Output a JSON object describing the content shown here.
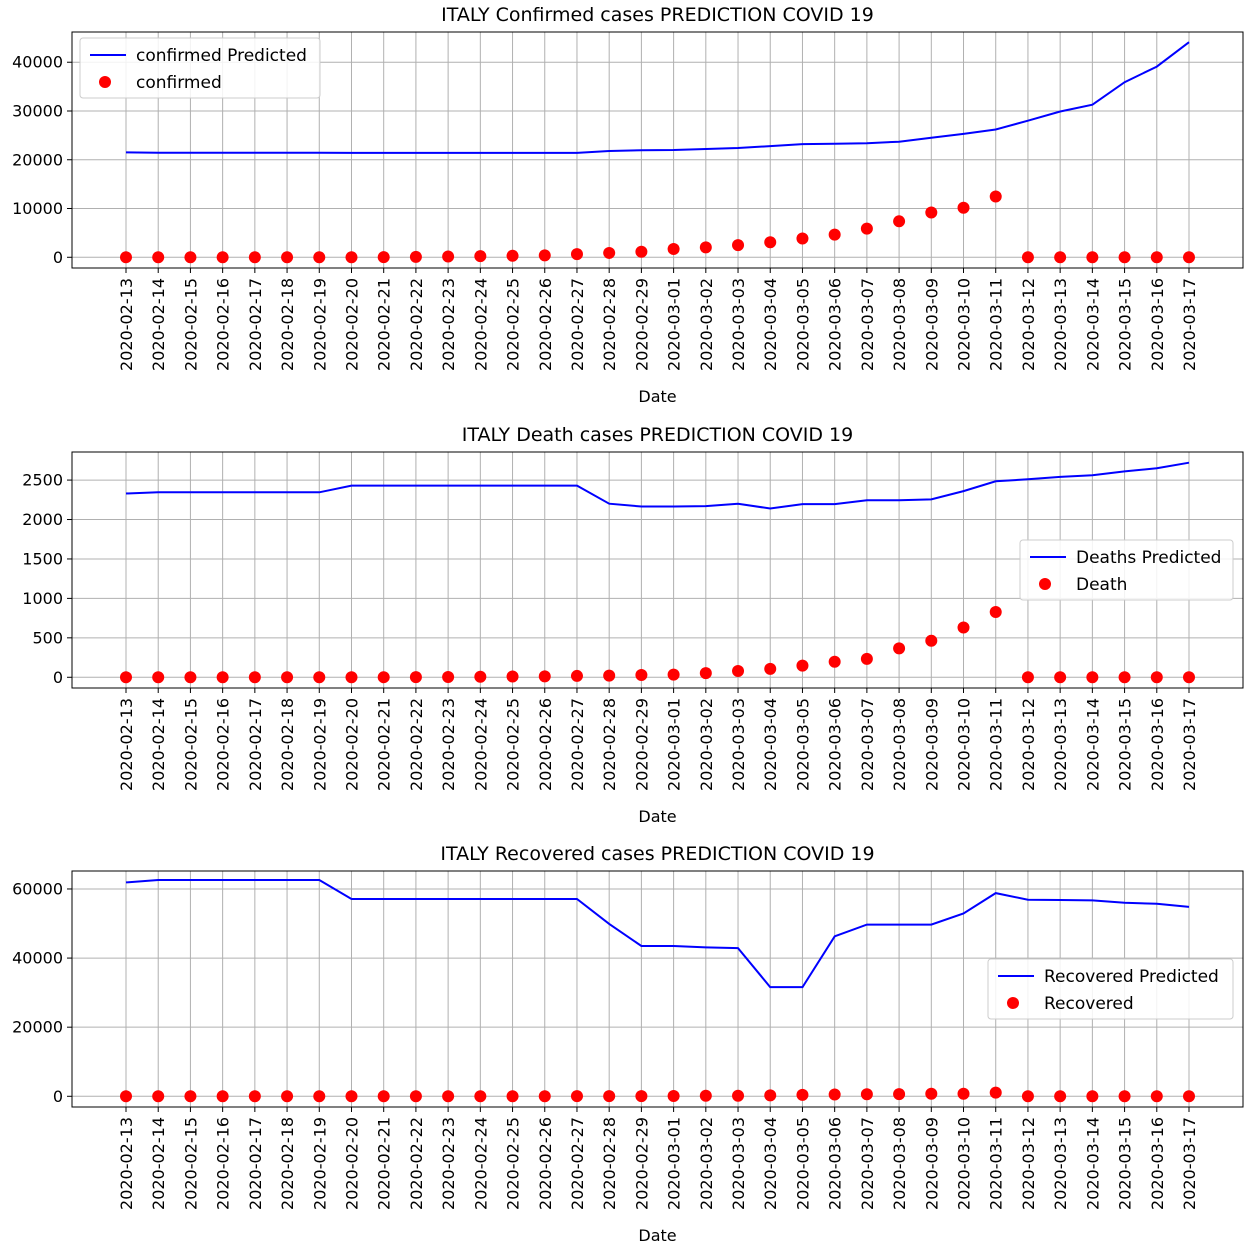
{
  "chart_data": [
    {
      "type": "line",
      "title": "ITALY Confirmed cases PREDICTION COVID 19",
      "xlabel": "Date",
      "ylabel": "",
      "ylim": [
        -2200,
        46200
      ],
      "yticks": [
        0,
        10000,
        20000,
        30000,
        40000
      ],
      "ytick_labels": [
        "0",
        "10000",
        "20000",
        "30000",
        "40000"
      ],
      "grid": true,
      "legend_position": "upper left",
      "x": [
        "2020-02-13",
        "2020-02-14",
        "2020-02-15",
        "2020-02-16",
        "2020-02-17",
        "2020-02-18",
        "2020-02-19",
        "2020-02-20",
        "2020-02-21",
        "2020-02-22",
        "2020-02-23",
        "2020-02-24",
        "2020-02-25",
        "2020-02-26",
        "2020-02-27",
        "2020-02-28",
        "2020-02-29",
        "2020-03-01",
        "2020-03-02",
        "2020-03-03",
        "2020-03-04",
        "2020-03-05",
        "2020-03-06",
        "2020-03-07",
        "2020-03-08",
        "2020-03-09",
        "2020-03-10",
        "2020-03-11",
        "2020-03-12",
        "2020-03-13",
        "2020-03-14",
        "2020-03-15",
        "2020-03-16",
        "2020-03-17"
      ],
      "series": [
        {
          "name": "confirmed Predicted",
          "kind": "line",
          "color": "#0000ff",
          "values": [
            21500,
            21450,
            21450,
            21450,
            21450,
            21450,
            21450,
            21400,
            21400,
            21400,
            21400,
            21400,
            21400,
            21400,
            21400,
            21800,
            21950,
            22000,
            22200,
            22400,
            22800,
            23200,
            23300,
            23400,
            23700,
            24500,
            25300,
            26200,
            28000,
            29900,
            31300,
            35900,
            39100,
            44100
          ]
        },
        {
          "name": "confirmed",
          "kind": "scatter",
          "color": "#ff0000",
          "values": [
            3,
            3,
            3,
            3,
            3,
            3,
            3,
            3,
            20,
            79,
            150,
            229,
            322,
            400,
            650,
            888,
            1128,
            1694,
            2036,
            2502,
            3089,
            3858,
            4636,
            5883,
            7375,
            9172,
            10149,
            12462,
            0,
            0,
            0,
            0,
            0,
            0
          ]
        }
      ]
    },
    {
      "type": "line",
      "title": "ITALY Death cases PREDICTION COVID 19",
      "xlabel": "Date",
      "ylabel": "",
      "ylim": [
        -136,
        2856
      ],
      "yticks": [
        0,
        500,
        1000,
        1500,
        2000,
        2500
      ],
      "ytick_labels": [
        "0",
        "500",
        "1000",
        "1500",
        "2000",
        "2500"
      ],
      "grid": true,
      "legend_position": "center right",
      "x": [
        "2020-02-13",
        "2020-02-14",
        "2020-02-15",
        "2020-02-16",
        "2020-02-17",
        "2020-02-18",
        "2020-02-19",
        "2020-02-20",
        "2020-02-21",
        "2020-02-22",
        "2020-02-23",
        "2020-02-24",
        "2020-02-25",
        "2020-02-26",
        "2020-02-27",
        "2020-02-28",
        "2020-02-29",
        "2020-03-01",
        "2020-03-02",
        "2020-03-03",
        "2020-03-04",
        "2020-03-05",
        "2020-03-06",
        "2020-03-07",
        "2020-03-08",
        "2020-03-09",
        "2020-03-10",
        "2020-03-11",
        "2020-03-12",
        "2020-03-13",
        "2020-03-14",
        "2020-03-15",
        "2020-03-16",
        "2020-03-17"
      ],
      "series": [
        {
          "name": "Deaths Predicted",
          "kind": "line",
          "color": "#0000ff",
          "values": [
            2330,
            2345,
            2345,
            2345,
            2345,
            2345,
            2345,
            2430,
            2430,
            2430,
            2430,
            2430,
            2430,
            2430,
            2430,
            2200,
            2165,
            2165,
            2170,
            2200,
            2140,
            2195,
            2195,
            2245,
            2245,
            2255,
            2360,
            2485,
            2510,
            2540,
            2560,
            2610,
            2650,
            2720
          ]
        },
        {
          "name": "Death",
          "kind": "scatter",
          "color": "#ff0000",
          "values": [
            0,
            0,
            0,
            0,
            0,
            0,
            0,
            0,
            1,
            2,
            3,
            7,
            10,
            12,
            17,
            21,
            29,
            34,
            52,
            79,
            107,
            148,
            197,
            233,
            366,
            463,
            631,
            827,
            0,
            0,
            0,
            0,
            0,
            0
          ]
        }
      ]
    },
    {
      "type": "line",
      "title": "ITALY Recovered cases PREDICTION COVID 19",
      "xlabel": "Date",
      "ylabel": "",
      "ylim": [
        -3100,
        65200
      ],
      "yticks": [
        0,
        20000,
        40000,
        60000
      ],
      "ytick_labels": [
        "0",
        "20000",
        "40000",
        "60000"
      ],
      "grid": true,
      "legend_position": "center right",
      "x": [
        "2020-02-13",
        "2020-02-14",
        "2020-02-15",
        "2020-02-16",
        "2020-02-17",
        "2020-02-18",
        "2020-02-19",
        "2020-02-20",
        "2020-02-21",
        "2020-02-22",
        "2020-02-23",
        "2020-02-24",
        "2020-02-25",
        "2020-02-26",
        "2020-02-27",
        "2020-02-28",
        "2020-02-29",
        "2020-03-01",
        "2020-03-02",
        "2020-03-03",
        "2020-03-04",
        "2020-03-05",
        "2020-03-06",
        "2020-03-07",
        "2020-03-08",
        "2020-03-09",
        "2020-03-10",
        "2020-03-11",
        "2020-03-12",
        "2020-03-13",
        "2020-03-14",
        "2020-03-15",
        "2020-03-16",
        "2020-03-17"
      ],
      "series": [
        {
          "name": "Recovered Predicted",
          "kind": "line",
          "color": "#0000ff",
          "values": [
            61900,
            62600,
            62600,
            62600,
            62600,
            62600,
            62600,
            57100,
            57100,
            57100,
            57100,
            57100,
            57100,
            57100,
            57100,
            49900,
            43500,
            43500,
            43100,
            42900,
            31600,
            31600,
            46300,
            49700,
            49700,
            49700,
            52900,
            58800,
            56900,
            56800,
            56700,
            56000,
            55700,
            54800
          ]
        },
        {
          "name": "Recovered",
          "kind": "scatter",
          "color": "#ff0000",
          "values": [
            0,
            0,
            0,
            0,
            0,
            0,
            0,
            0,
            0,
            0,
            0,
            1,
            1,
            3,
            45,
            46,
            46,
            83,
            149,
            160,
            276,
            414,
            523,
            589,
            622,
            724,
            724,
            1045,
            0,
            0,
            0,
            0,
            0,
            0
          ]
        }
      ]
    }
  ]
}
